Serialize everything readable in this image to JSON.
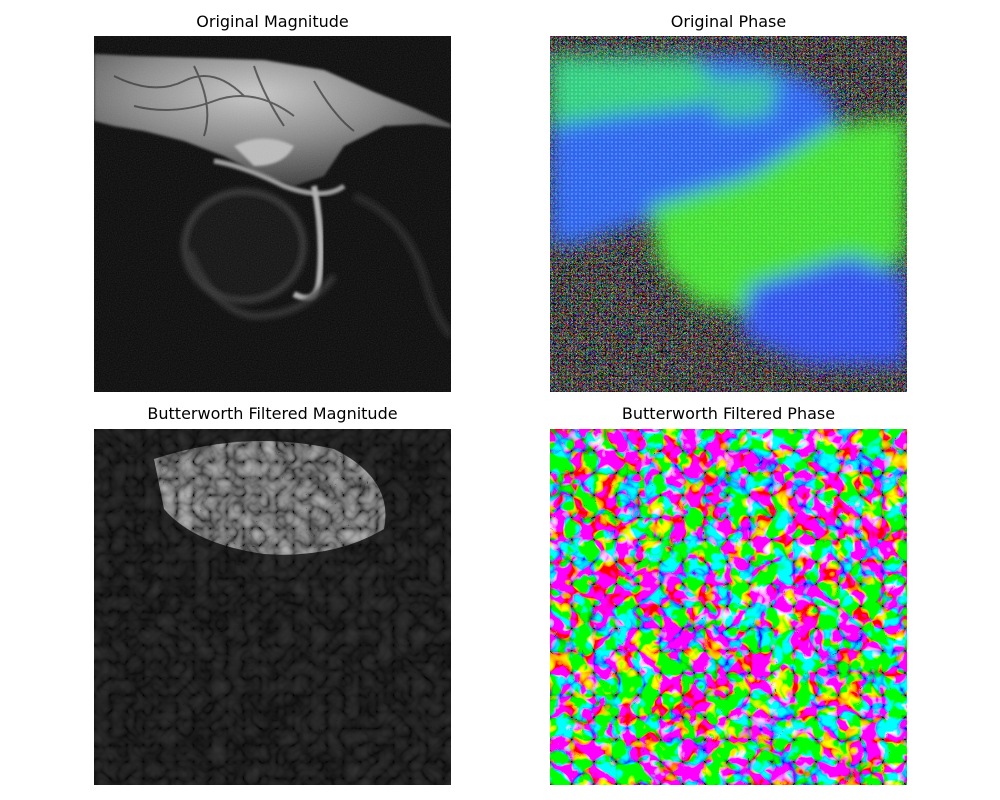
{
  "figure": {
    "panels": [
      {
        "id": "orig-mag",
        "title": "Original Magnitude",
        "colormap": "grayscale",
        "content": "axial MRI magnitude image"
      },
      {
        "id": "orig-phase",
        "title": "Original Phase",
        "colormap": "hsv",
        "content": "wrapped phase map"
      },
      {
        "id": "bw-mag",
        "title": "Butterworth Filtered Magnitude",
        "colormap": "grayscale",
        "content": "filtered magnitude image"
      },
      {
        "id": "bw-phase",
        "title": "Butterworth Filtered Phase",
        "colormap": "hsv",
        "content": "filtered phase map"
      }
    ],
    "colors": {
      "phase_green": "#33ff33",
      "phase_blue": "#3355ff",
      "phase_cyan": "#22e6e6",
      "phase_magenta": "#ff22ee",
      "phase_red": "#ff2222",
      "phase_yellow": "#ffff22"
    }
  }
}
